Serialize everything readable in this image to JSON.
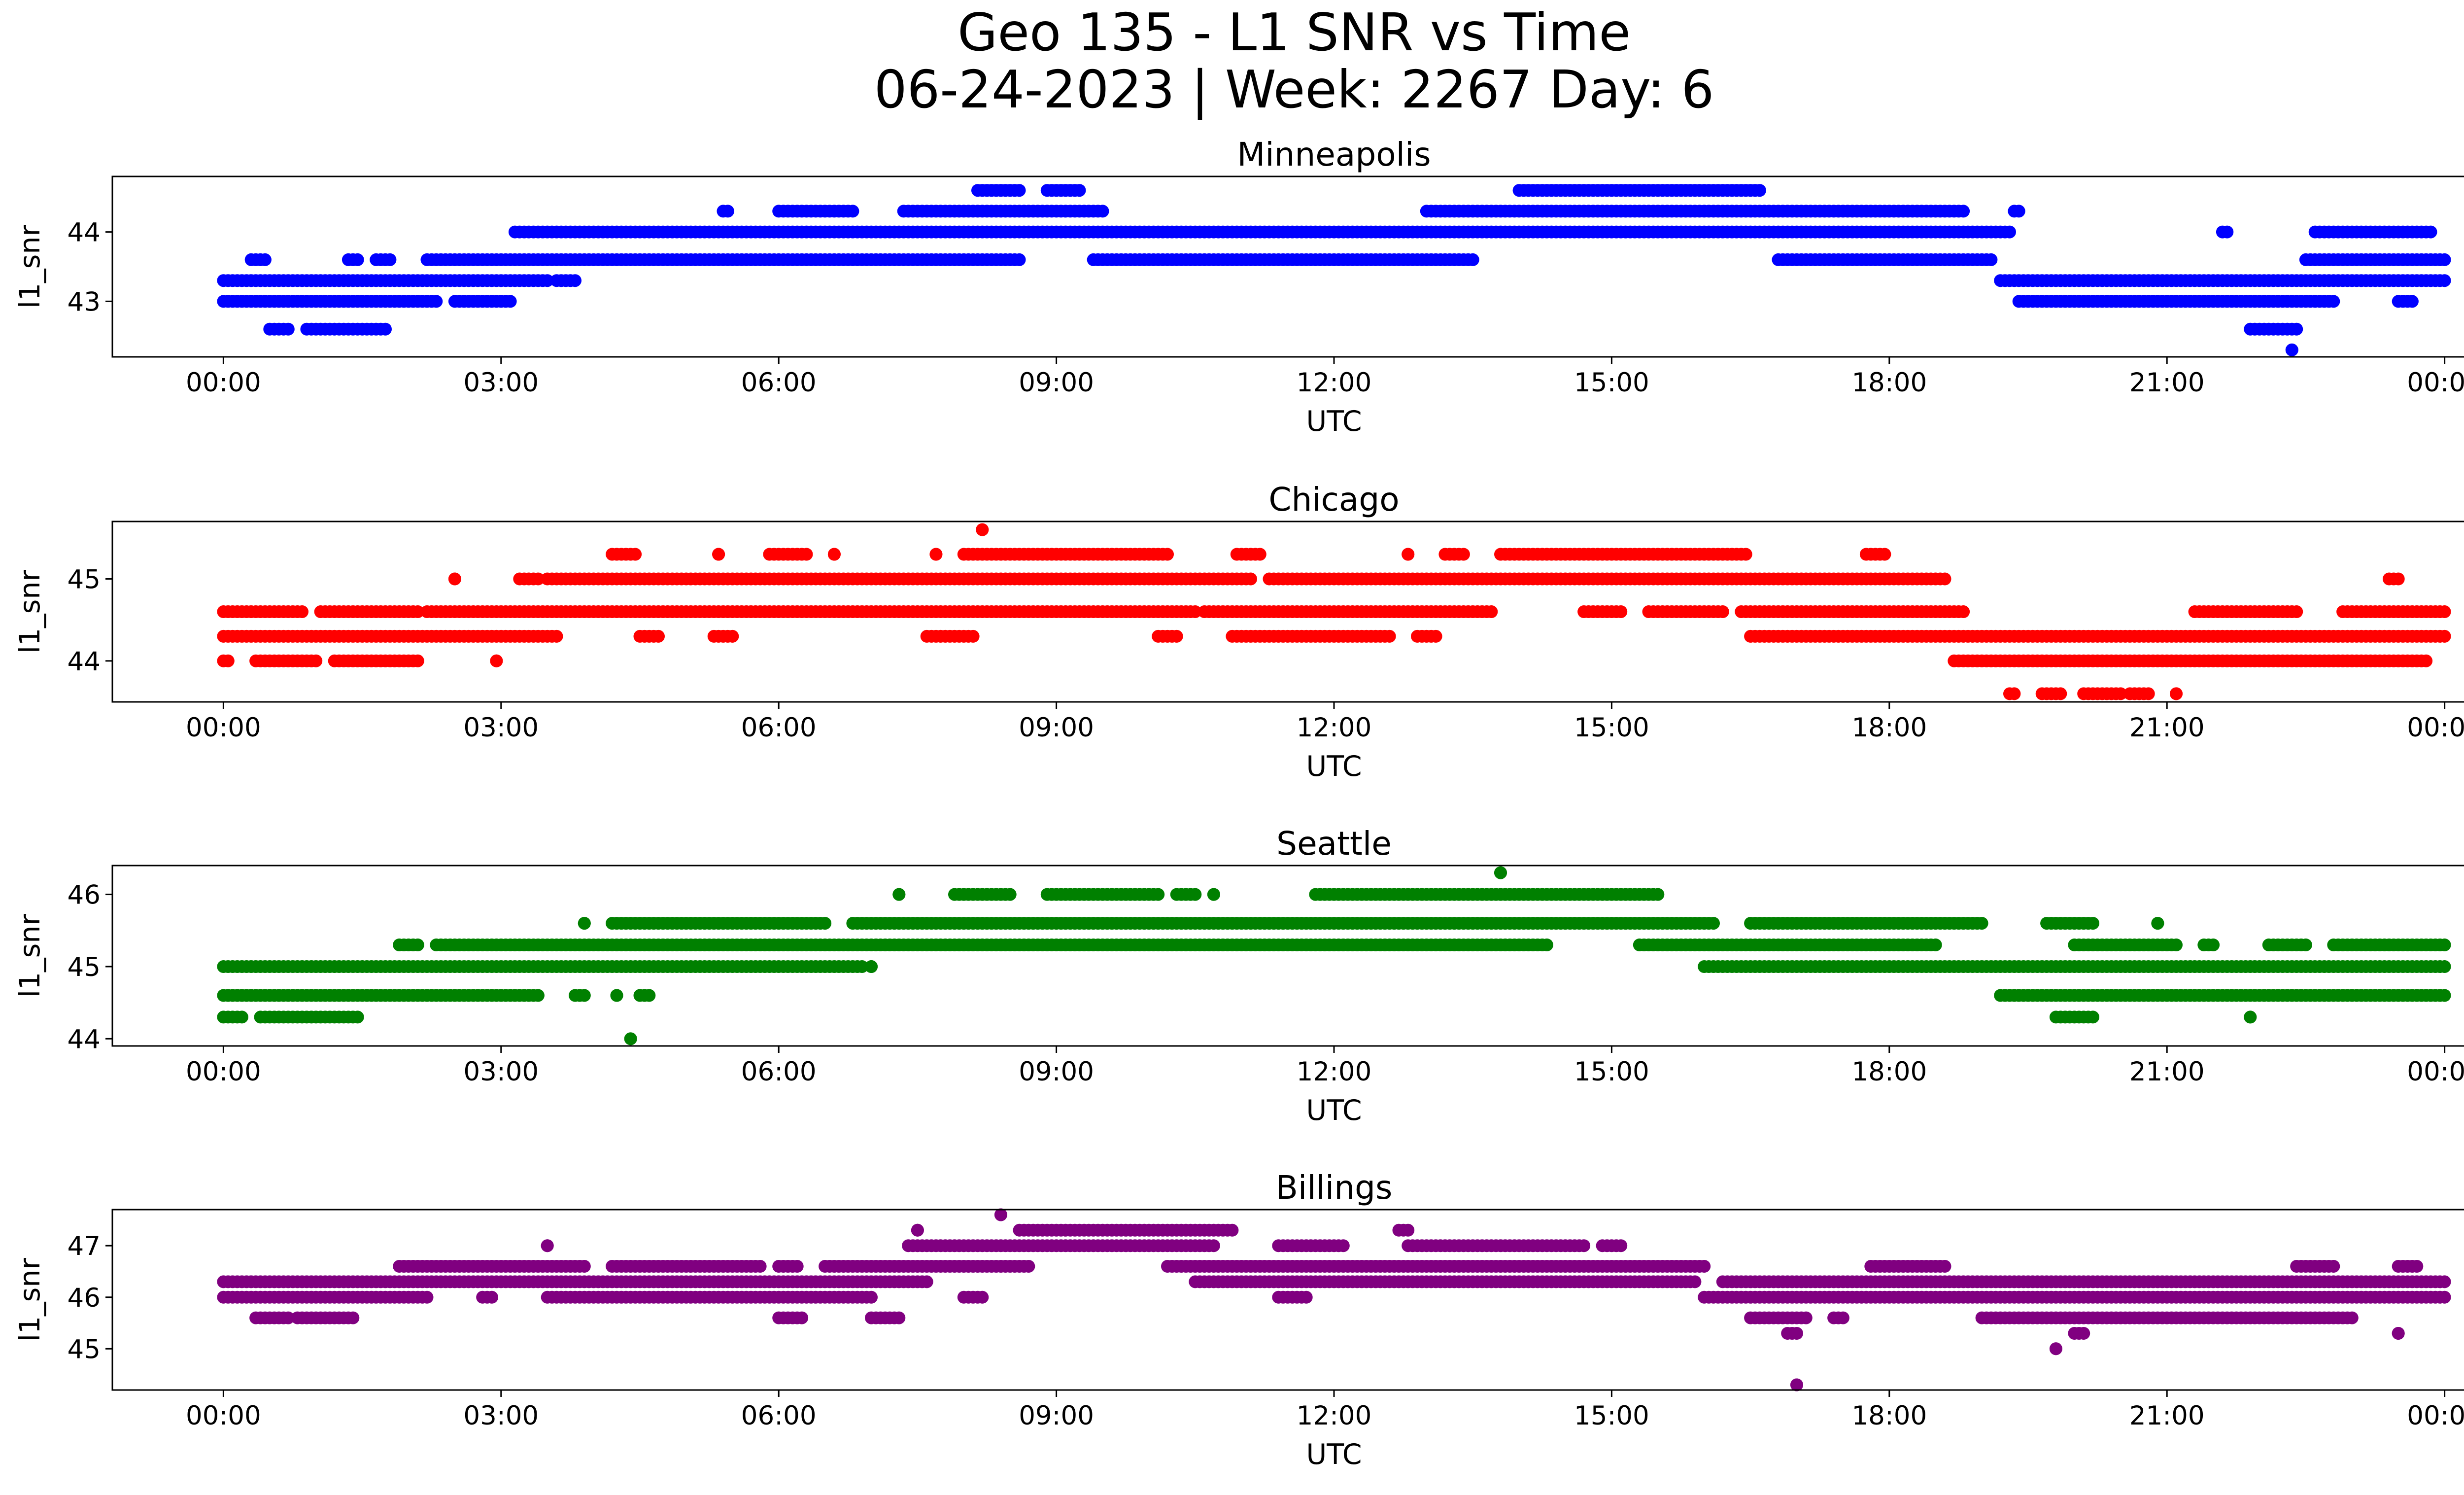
{
  "figure": {
    "title_line1": "Geo 135 - L1 SNR vs Time",
    "title_line2": "06-24-2023 | Week: 2267 Day: 6"
  },
  "chart_data": [
    {
      "type": "scatter",
      "title": "Minneapolis",
      "xlabel": "UTC",
      "ylabel": "l1_snr",
      "color": "#0000ff",
      "x_ticks": [
        "00:00",
        "03:00",
        "06:00",
        "09:00",
        "12:00",
        "15:00",
        "18:00",
        "21:00",
        "00:00"
      ],
      "y_ticks": [
        43,
        44
      ],
      "xlim_hours": [
        -1.2,
        25.2
      ],
      "ylim": [
        42.2,
        44.8
      ],
      "levels": [
        {
          "y": 43.3,
          "segments": [
            [
              0.0,
              3.5
            ],
            [
              3.6,
              3.8
            ],
            [
              19.2,
              24.0
            ]
          ]
        },
        {
          "y": 43.6,
          "segments": [
            [
              0.3,
              0.45
            ],
            [
              1.35,
              1.45
            ],
            [
              1.65,
              1.8
            ],
            [
              2.2,
              8.6
            ],
            [
              9.4,
              13.5
            ],
            [
              16.8,
              19.1
            ],
            [
              22.5,
              24.0
            ]
          ]
        },
        {
          "y": 44.0,
          "segments": [
            [
              3.15,
              19.3
            ],
            [
              21.6,
              21.65
            ],
            [
              22.6,
              23.85
            ]
          ]
        },
        {
          "y": 44.3,
          "segments": [
            [
              5.4,
              5.45
            ],
            [
              6.0,
              6.8
            ],
            [
              7.35,
              9.5
            ],
            [
              13.0,
              18.8
            ],
            [
              19.35,
              19.4
            ]
          ]
        },
        {
          "y": 44.6,
          "segments": [
            [
              8.15,
              8.6
            ],
            [
              8.9,
              9.25
            ],
            [
              14.0,
              16.6
            ]
          ]
        },
        {
          "y": 43.0,
          "segments": [
            [
              0.0,
              2.3
            ],
            [
              2.5,
              3.1
            ],
            [
              19.4,
              22.8
            ],
            [
              23.5,
              23.65
            ]
          ]
        },
        {
          "y": 42.6,
          "segments": [
            [
              0.5,
              0.7
            ],
            [
              0.9,
              1.75
            ],
            [
              21.9,
              22.4
            ]
          ]
        },
        {
          "y": 42.3,
          "segments": [
            [
              22.35,
              22.35
            ]
          ]
        }
      ]
    },
    {
      "type": "scatter",
      "title": "Chicago",
      "xlabel": "UTC",
      "ylabel": "l1_snr",
      "color": "#ff0000",
      "x_ticks": [
        "00:00",
        "03:00",
        "06:00",
        "09:00",
        "12:00",
        "15:00",
        "18:00",
        "21:00",
        "00:00"
      ],
      "y_ticks": [
        44,
        45
      ],
      "xlim_hours": [
        -1.2,
        25.2
      ],
      "ylim": [
        43.5,
        45.7
      ],
      "levels": [
        {
          "y": 44.3,
          "segments": [
            [
              0.0,
              3.6
            ],
            [
              4.5,
              4.7
            ],
            [
              5.3,
              5.5
            ],
            [
              7.6,
              8.1
            ],
            [
              10.1,
              10.3
            ],
            [
              10.9,
              12.6
            ],
            [
              12.9,
              13.1
            ],
            [
              16.5,
              24.0
            ]
          ]
        },
        {
          "y": 44.6,
          "segments": [
            [
              0.0,
              0.85
            ],
            [
              1.05,
              2.1
            ],
            [
              2.2,
              10.5
            ],
            [
              10.6,
              13.7
            ],
            [
              14.7,
              15.1
            ],
            [
              15.4,
              16.2
            ],
            [
              16.4,
              18.8
            ],
            [
              21.3,
              22.4
            ],
            [
              22.9,
              24.0
            ]
          ]
        },
        {
          "y": 45.0,
          "segments": [
            [
              2.5,
              2.5
            ],
            [
              3.2,
              3.4
            ],
            [
              3.5,
              11.1
            ],
            [
              11.3,
              18.6
            ],
            [
              23.4,
              23.5
            ]
          ]
        },
        {
          "y": 45.3,
          "segments": [
            [
              4.2,
              4.45
            ],
            [
              5.35,
              5.35
            ],
            [
              5.9,
              6.3
            ],
            [
              6.6,
              6.6
            ],
            [
              7.7,
              7.7
            ],
            [
              8.0,
              10.2
            ],
            [
              10.95,
              11.2
            ],
            [
              12.8,
              12.8
            ],
            [
              13.2,
              13.4
            ],
            [
              13.8,
              16.45
            ],
            [
              17.75,
              17.95
            ]
          ]
        },
        {
          "y": 44.0,
          "segments": [
            [
              0.0,
              0.05
            ],
            [
              0.35,
              1.0
            ],
            [
              1.2,
              2.1
            ],
            [
              2.95,
              2.95
            ],
            [
              18.7,
              23.8
            ]
          ]
        },
        {
          "y": 43.6,
          "segments": [
            [
              19.3,
              19.35
            ],
            [
              19.65,
              19.85
            ],
            [
              20.1,
              20.5
            ],
            [
              20.6,
              20.8
            ],
            [
              21.1,
              21.1
            ]
          ]
        },
        {
          "y": 45.6,
          "segments": [
            [
              8.2,
              8.2
            ]
          ]
        }
      ]
    },
    {
      "type": "scatter",
      "title": "Seattle",
      "xlabel": "UTC",
      "ylabel": "l1_snr",
      "color": "#008000",
      "x_ticks": [
        "00:00",
        "03:00",
        "06:00",
        "09:00",
        "12:00",
        "15:00",
        "18:00",
        "21:00",
        "00:00"
      ],
      "y_ticks": [
        44,
        45,
        46
      ],
      "xlim_hours": [
        -1.2,
        25.2
      ],
      "ylim": [
        43.9,
        46.4
      ],
      "levels": [
        {
          "y": 45.0,
          "segments": [
            [
              0.0,
              6.9
            ],
            [
              7.0,
              7.0
            ],
            [
              16.0,
              24.0
            ]
          ]
        },
        {
          "y": 44.6,
          "segments": [
            [
              0.0,
              3.4
            ],
            [
              3.8,
              3.9
            ],
            [
              4.25,
              4.25
            ],
            [
              4.5,
              4.6
            ],
            [
              19.2,
              24.0
            ]
          ]
        },
        {
          "y": 44.3,
          "segments": [
            [
              0.0,
              0.2
            ],
            [
              0.4,
              1.45
            ],
            [
              19.8,
              20.2
            ],
            [
              21.9,
              21.9
            ]
          ]
        },
        {
          "y": 45.3,
          "segments": [
            [
              1.9,
              2.1
            ],
            [
              2.3,
              14.3
            ],
            [
              15.3,
              18.5
            ],
            [
              20.0,
              21.1
            ],
            [
              21.4,
              21.5
            ],
            [
              22.1,
              22.5
            ],
            [
              22.8,
              24.0
            ]
          ]
        },
        {
          "y": 45.6,
          "segments": [
            [
              3.9,
              3.9
            ],
            [
              4.2,
              6.5
            ],
            [
              6.8,
              16.1
            ],
            [
              16.5,
              19.0
            ],
            [
              19.7,
              20.2
            ],
            [
              20.9,
              20.9
            ]
          ]
        },
        {
          "y": 46.0,
          "segments": [
            [
              7.3,
              7.3
            ],
            [
              7.9,
              8.5
            ],
            [
              8.9,
              10.1
            ],
            [
              10.3,
              10.5
            ],
            [
              10.7,
              10.7
            ],
            [
              11.8,
              15.5
            ]
          ]
        },
        {
          "y": 46.3,
          "segments": [
            [
              13.8,
              13.8
            ]
          ]
        },
        {
          "y": 44.0,
          "segments": [
            [
              4.4,
              4.4
            ]
          ]
        }
      ]
    },
    {
      "type": "scatter",
      "title": "Billings",
      "xlabel": "UTC",
      "ylabel": "l1_snr",
      "color": "#800080",
      "x_ticks": [
        "00:00",
        "03:00",
        "06:00",
        "09:00",
        "12:00",
        "15:00",
        "18:00",
        "21:00",
        "00:00"
      ],
      "y_ticks": [
        45,
        46,
        47
      ],
      "xlim_hours": [
        -1.2,
        25.2
      ],
      "ylim": [
        44.2,
        47.7
      ],
      "levels": [
        {
          "y": 46.0,
          "segments": [
            [
              0.0,
              2.2
            ],
            [
              2.8,
              2.9
            ],
            [
              3.5,
              7.0
            ],
            [
              8.0,
              8.2
            ],
            [
              11.4,
              11.7
            ],
            [
              16.0,
              24.0
            ]
          ]
        },
        {
          "y": 46.3,
          "segments": [
            [
              0.0,
              7.6
            ],
            [
              10.5,
              15.9
            ],
            [
              16.2,
              24.0
            ]
          ]
        },
        {
          "y": 46.6,
          "segments": [
            [
              1.9,
              3.9
            ],
            [
              4.2,
              5.8
            ],
            [
              6.0,
              6.2
            ],
            [
              6.5,
              8.7
            ],
            [
              10.2,
              16.0
            ],
            [
              17.8,
              18.6
            ],
            [
              22.4,
              22.8
            ],
            [
              23.5,
              23.7
            ]
          ]
        },
        {
          "y": 47.0,
          "segments": [
            [
              3.5,
              3.5
            ],
            [
              7.4,
              10.7
            ],
            [
              11.4,
              12.1
            ],
            [
              12.8,
              14.7
            ],
            [
              14.9,
              15.1
            ]
          ]
        },
        {
          "y": 47.3,
          "segments": [
            [
              7.5,
              7.5
            ],
            [
              8.6,
              10.9
            ],
            [
              12.7,
              12.8
            ]
          ]
        },
        {
          "y": 47.6,
          "segments": [
            [
              8.4,
              8.4
            ]
          ]
        },
        {
          "y": 45.6,
          "segments": [
            [
              0.35,
              0.7
            ],
            [
              0.8,
              1.4
            ],
            [
              6.0,
              6.25
            ],
            [
              7.0,
              7.3
            ],
            [
              16.5,
              17.1
            ],
            [
              17.4,
              17.5
            ],
            [
              19.0,
              23.0
            ]
          ]
        },
        {
          "y": 45.3,
          "segments": [
            [
              16.9,
              17.0
            ],
            [
              20.0,
              20.1
            ],
            [
              23.5,
              23.5
            ]
          ]
        },
        {
          "y": 45.0,
          "segments": [
            [
              19.8,
              19.8
            ]
          ]
        },
        {
          "y": 44.3,
          "segments": [
            [
              17.0,
              17.0
            ]
          ]
        }
      ]
    }
  ]
}
